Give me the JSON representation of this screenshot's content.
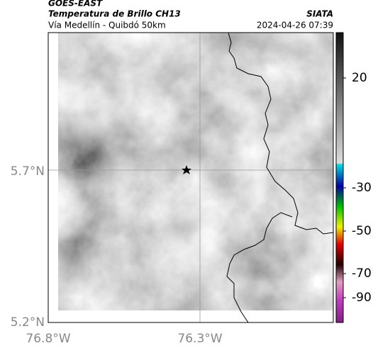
{
  "header": {
    "satellite": "GOES-EAST",
    "product": "Temperatura de Brillo CH13",
    "region": "Vía Medellín - Quibdó 50km",
    "source": "SIATA",
    "datetime": "2024-04-26 07:39"
  },
  "map": {
    "lat_labels": [
      "5.7°N",
      "5.2°N"
    ],
    "lon_labels": [
      "76.8°W",
      "76.3°W"
    ]
  },
  "colorbar": {
    "ticks": [
      20,
      -30,
      -50,
      -70,
      -90
    ]
  }
}
